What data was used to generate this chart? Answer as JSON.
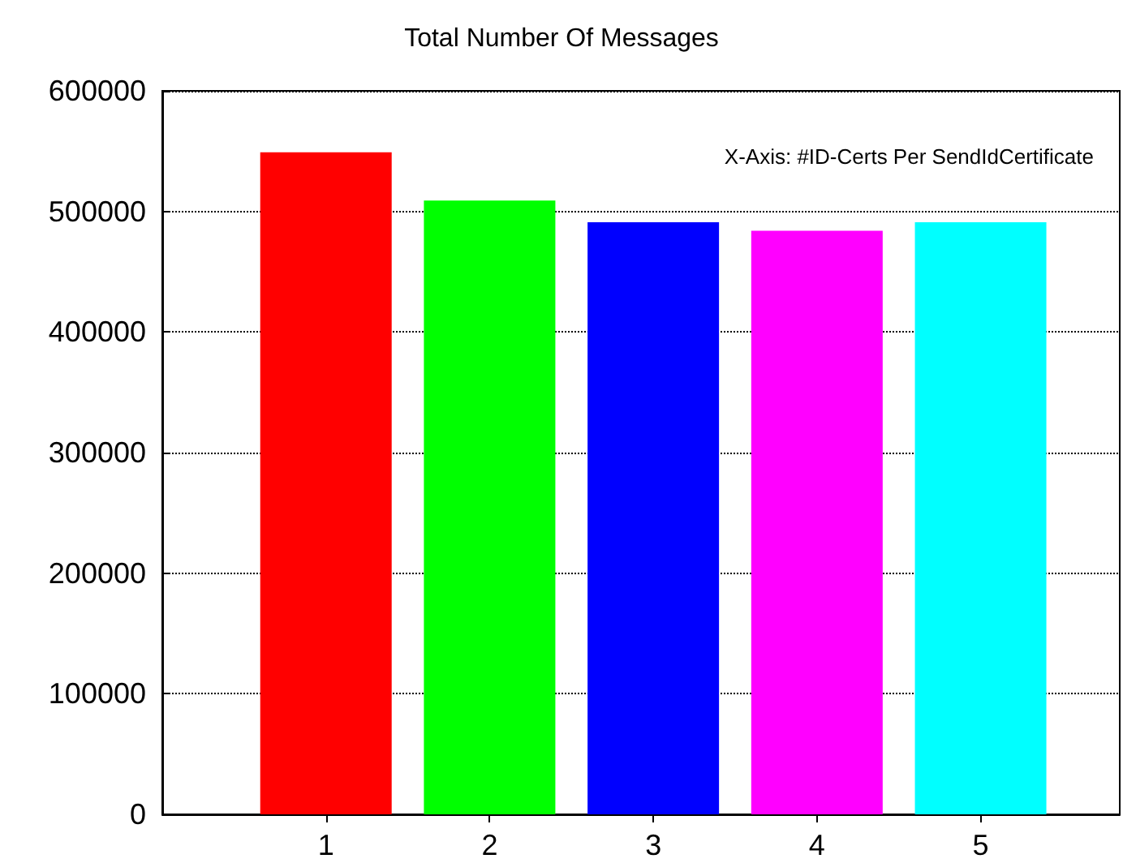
{
  "chart_data": {
    "type": "bar",
    "title": "Total Number Of Messages",
    "annotations": [
      "X-Axis: #ID-Certs Per SendIdCertificate"
    ],
    "x": [
      1,
      2,
      3,
      4,
      5
    ],
    "values": [
      549000,
      509000,
      491000,
      484000,
      491000
    ],
    "colors": [
      "#ff0000",
      "#00ff00",
      "#0000ff",
      "#ff00ff",
      "#00ffff"
    ],
    "xlim": [
      0,
      5.85
    ],
    "xticks": [
      1,
      2,
      3,
      4,
      5
    ],
    "ylim": [
      0,
      600000
    ],
    "yticks": [
      0,
      100000,
      200000,
      300000,
      400000,
      500000,
      600000
    ],
    "grid": "y"
  }
}
